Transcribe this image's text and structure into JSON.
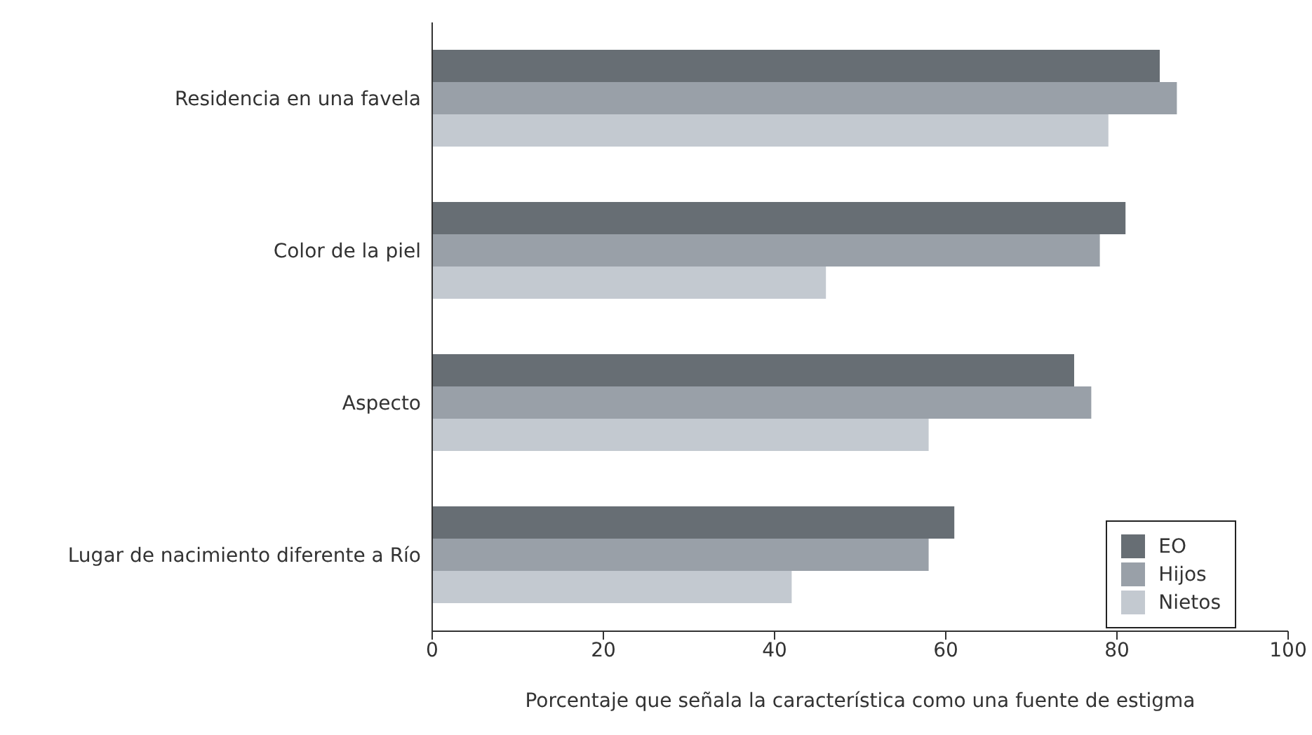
{
  "chart_data": {
    "type": "bar",
    "orientation": "horizontal",
    "xlabel": "Porcentaje que señala la característica como una fuente de estigma",
    "categories": [
      "Residencia en una favela",
      "Color de la piel",
      "Aspecto",
      "Lugar de nacimiento diferente a Río"
    ],
    "series": [
      {
        "name": "EO",
        "color": "#676e74",
        "values": [
          85,
          81,
          75,
          61
        ]
      },
      {
        "name": "Hijos",
        "color": "#99a0a8",
        "values": [
          87,
          78,
          77,
          58
        ]
      },
      {
        "name": "Nietos",
        "color": "#c3c9d0",
        "values": [
          79,
          46,
          58,
          42
        ]
      }
    ],
    "xlim": [
      0,
      100
    ],
    "xticks": [
      0,
      20,
      40,
      60,
      80,
      100
    ],
    "grid": false,
    "legend": "bottom right"
  }
}
